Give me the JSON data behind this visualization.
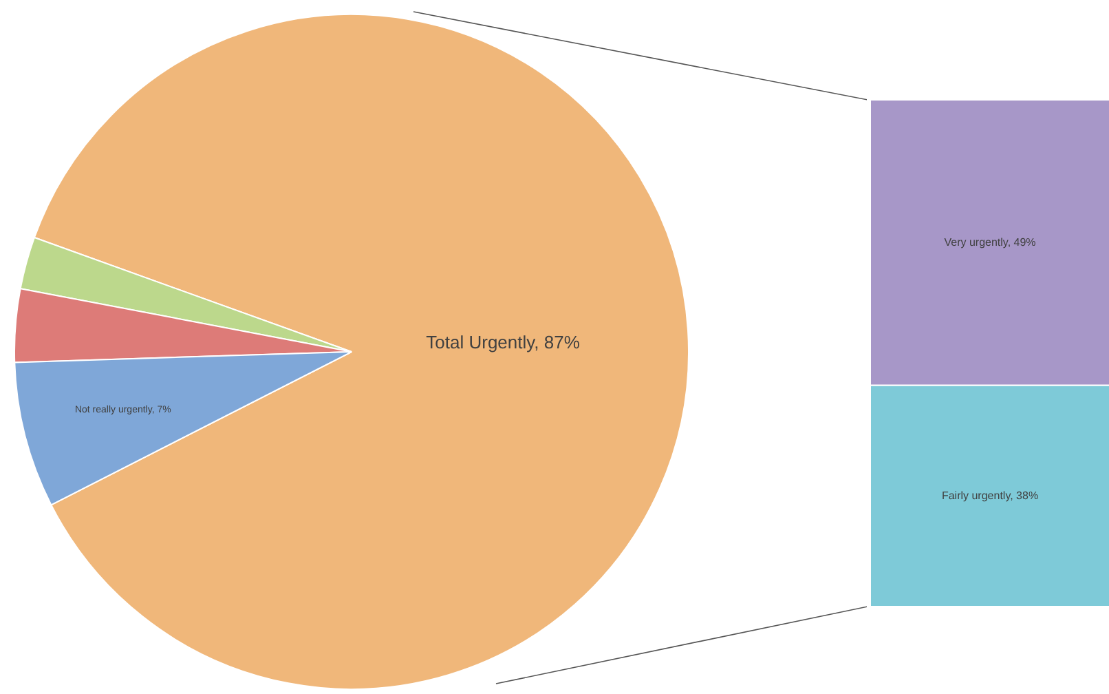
{
  "chart_data": [
    {
      "type": "pie",
      "categories": [
        "Total Urgently",
        null,
        null,
        "Not really urgently"
      ],
      "values": [
        87,
        2.5,
        3.5,
        7
      ],
      "colors": [
        "#f0b77a",
        "#bcd88c",
        "#dd7b78",
        "#7fa7d8"
      ],
      "value_labels": [
        "87%",
        null,
        null,
        "7%"
      ]
    },
    {
      "type": "bar",
      "stacked": true,
      "categories": [
        null
      ],
      "series": [
        {
          "color": "#7ecad8",
          "values": [
            38
          ],
          "value_labels": [
            "Fairly urgently, 38%"
          ]
        },
        {
          "color": "#a797c8",
          "values": [
            49
          ],
          "value_labels": [
            "Very urgently, 49%"
          ]
        }
      ]
    }
  ]
}
